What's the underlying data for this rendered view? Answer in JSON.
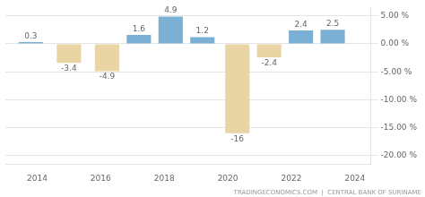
{
  "chart_data": {
    "type": "bar",
    "x": [
      2013.8,
      2015.0,
      2016.2,
      2017.2,
      2018.2,
      2019.2,
      2020.3,
      2021.3,
      2022.3,
      2023.3
    ],
    "values": [
      0.3,
      -3.4,
      -4.9,
      1.6,
      4.9,
      1.2,
      -16.0,
      -2.4,
      2.4,
      2.5
    ],
    "value_labels": [
      "0.3",
      "-3.4",
      "-4.9",
      "1.6",
      "4.9",
      "1.2",
      "-16",
      "-2.4",
      "2.4",
      "2.5"
    ],
    "colors": [
      "#7bafd4",
      "#e8d5a3",
      "#e8d5a3",
      "#7bafd4",
      "#7bafd4",
      "#7bafd4",
      "#e8d5a3",
      "#e8d5a3",
      "#7bafd4",
      "#7bafd4"
    ],
    "xlim": [
      2013.0,
      2024.5
    ],
    "xticks": [
      2014,
      2016,
      2018,
      2020,
      2022,
      2024
    ],
    "ylim": [
      -21.5,
      6.5
    ],
    "yticks": [
      {
        "value": 5.0,
        "label": "5.00 %"
      },
      {
        "value": 0.0,
        "label": "0.00 %"
      },
      {
        "value": -5.0,
        "label": "-5.00 %"
      },
      {
        "value": -10.0,
        "label": "-10.00 %"
      },
      {
        "value": -15.0,
        "label": "-15.00 %"
      },
      {
        "value": -20.0,
        "label": "-20.00 %"
      }
    ],
    "grid": "y",
    "data_labels": true,
    "annotations": [
      "TRADINGECONOMICS.COM  |  CENTRAL BANK OF SURINAME"
    ]
  }
}
